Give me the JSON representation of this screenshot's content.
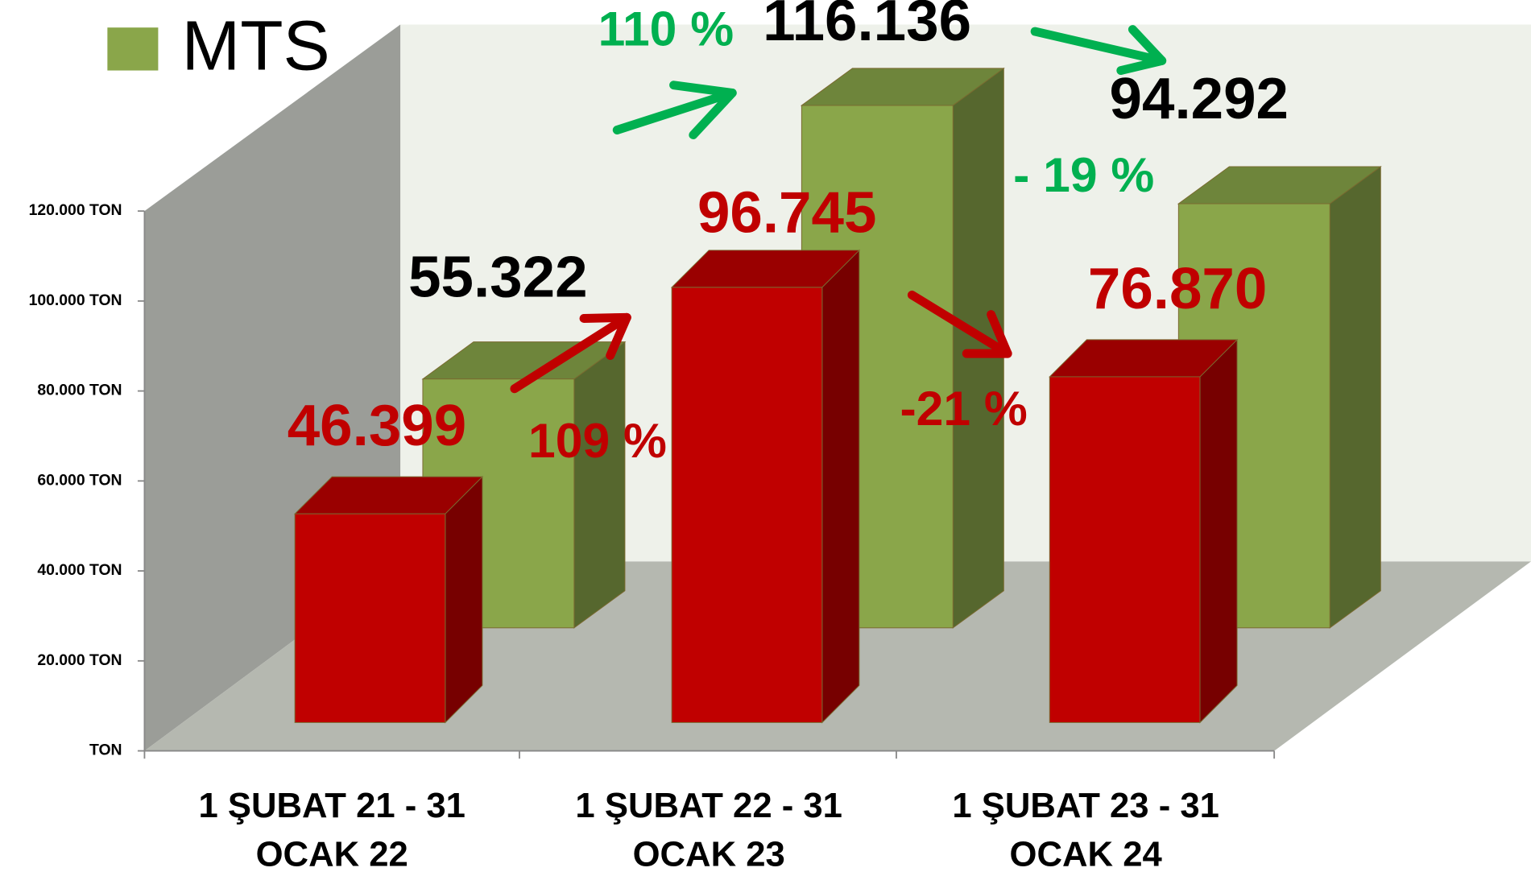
{
  "chart_data": {
    "type": "bar3d",
    "categories": [
      "1 ŞUBAT 21 - 31 OCAK 22",
      "1 ŞUBAT 22 - 31 OCAK 23",
      "1 ŞUBAT 23 - 31 OCAK 24"
    ],
    "series": [
      {
        "color": "#c00000",
        "values": [
          46399,
          96745,
          76870
        ],
        "value_labels": [
          "46.399",
          "96.745",
          "76.870"
        ]
      },
      {
        "name": "MTS",
        "color": "#8aa64a",
        "values": [
          55322,
          116136,
          94292
        ],
        "value_labels": [
          "55.322",
          "116.136",
          "94.292"
        ]
      }
    ],
    "ylim": [
      0,
      120000
    ],
    "yticks": [
      {
        "value": 0,
        "label": "TON"
      },
      {
        "value": 20000,
        "label": "20.000 TON"
      },
      {
        "value": 40000,
        "label": "40.000 TON"
      },
      {
        "value": 60000,
        "label": "60.000 TON"
      },
      {
        "value": 80000,
        "label": "80.000 TON"
      },
      {
        "value": 100000,
        "label": "100.000 TON"
      },
      {
        "value": 120000,
        "label": "120.000 TON"
      }
    ],
    "legend": "top-left",
    "annotations": [
      {
        "text": "110 %",
        "color": "#00b050"
      },
      {
        "text": "- 19 %",
        "color": "#00b050"
      },
      {
        "text": "109 %",
        "color": "#c00000"
      },
      {
        "text": "-21 %",
        "color": "#c00000"
      }
    ]
  }
}
